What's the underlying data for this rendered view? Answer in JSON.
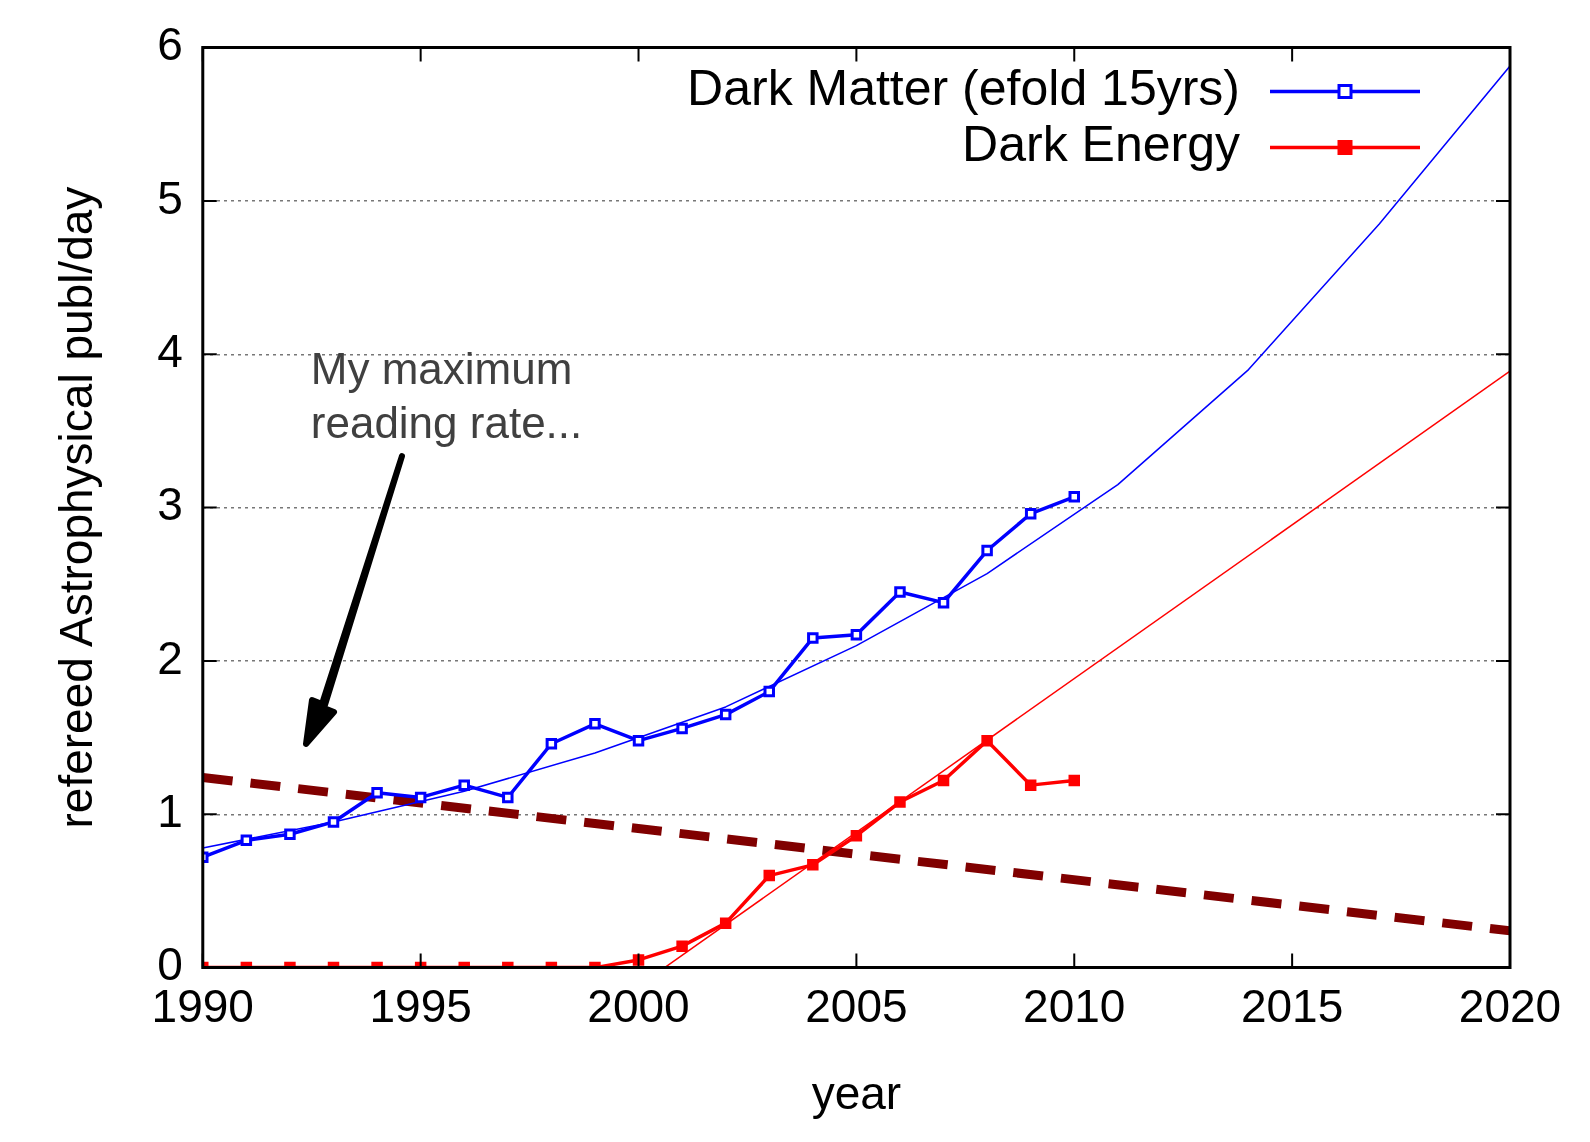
{
  "chart_data": {
    "type": "line",
    "xlabel": "year",
    "ylabel": "refereed Astrophysical publ/day",
    "xlim": [
      1990,
      2020
    ],
    "xticks": [
      1990,
      1995,
      2000,
      2005,
      2010,
      2015,
      2020
    ],
    "ylim": [
      0,
      6
    ],
    "yticks": [
      0,
      1,
      2,
      3,
      4,
      5,
      6
    ],
    "grid": "y",
    "legend": "top right",
    "marker": "square",
    "x": [
      1990,
      1991,
      1992,
      1993,
      1994,
      1995,
      1996,
      1997,
      1998,
      1999,
      2000,
      2001,
      2002,
      2003,
      2004,
      2005,
      2006,
      2007,
      2008,
      2009,
      2010
    ],
    "series": [
      {
        "name": "Dark Matter (efold 15yrs)",
        "color": "#0000ff",
        "values": [
          0.72,
          0.83,
          0.87,
          0.95,
          1.14,
          1.11,
          1.19,
          1.11,
          1.46,
          1.59,
          1.48,
          1.56,
          1.65,
          1.8,
          2.15,
          2.17,
          2.45,
          2.38,
          2.72,
          2.96,
          3.07
        ]
      },
      {
        "name": "Dark Energy",
        "color": "#ff0000",
        "values": [
          0,
          0,
          0,
          0,
          0,
          0,
          0,
          0,
          0,
          0,
          0.05,
          0.14,
          0.29,
          0.6,
          0.67,
          0.86,
          1.08,
          1.22,
          1.48,
          1.19,
          1.22
        ]
      },
      {
        "color": "#0000ff",
        "marker": "none",
        "x": [
          1990,
          1993,
          1996,
          1999,
          2002,
          2005,
          2008,
          2011,
          2014,
          2017,
          2020
        ],
        "values": [
          0.78,
          0.95,
          1.15,
          1.4,
          1.7,
          2.1,
          2.57,
          3.15,
          3.9,
          4.85,
          5.88
        ]
      },
      {
        "color": "#ff0000",
        "marker": "none",
        "x": [
          2000.6,
          2020
        ],
        "values": [
          0,
          3.89
        ]
      },
      {
        "color": "#800000",
        "marker": "none",
        "line_style": "dashed",
        "x": [
          1990,
          2020
        ],
        "values": [
          1.24,
          0.24
        ]
      }
    ],
    "annotations": [
      "My maximum reading rate..."
    ]
  }
}
